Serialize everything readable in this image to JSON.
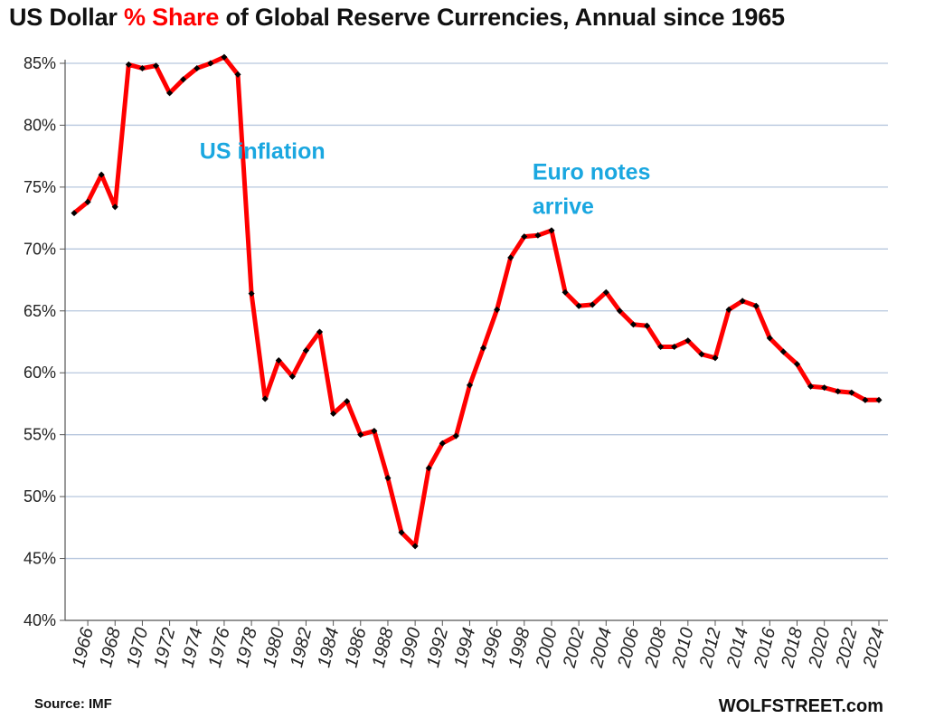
{
  "title": {
    "part1": "US Dollar ",
    "part2": "% Share",
    "part3": " of Global Reserve Currencies, Annual since 1965"
  },
  "footer": {
    "source": "Source: IMF",
    "brand": "WOLFSTREET.com"
  },
  "colors": {
    "line": "#ff0000",
    "marker": "#000000",
    "grid": "#b7c7de",
    "annotation": "#1aa7e0",
    "title_highlight": "#ff0000"
  },
  "chart_data": {
    "type": "line",
    "title": "US Dollar % Share of Global Reserve Currencies, Annual since 1965",
    "xlabel": "",
    "ylabel": "",
    "ylim": [
      40,
      85
    ],
    "xlim": [
      1965,
      2024
    ],
    "grid": true,
    "y_ticks": [
      {
        "value": 40,
        "label": "40%"
      },
      {
        "value": 45,
        "label": "45%"
      },
      {
        "value": 50,
        "label": "50%"
      },
      {
        "value": 55,
        "label": "55%"
      },
      {
        "value": 60,
        "label": "60%"
      },
      {
        "value": 65,
        "label": "65%"
      },
      {
        "value": 70,
        "label": "70%"
      },
      {
        "value": 75,
        "label": "75%"
      },
      {
        "value": 80,
        "label": "80%"
      },
      {
        "value": 85,
        "label": "85%"
      }
    ],
    "x_ticks": [
      "1966",
      "1968",
      "1970",
      "1972",
      "1974",
      "1976",
      "1978",
      "1980",
      "1982",
      "1984",
      "1986",
      "1988",
      "1990",
      "1992",
      "1994",
      "1996",
      "1998",
      "2000",
      "2002",
      "2004",
      "2006",
      "2008",
      "2010",
      "2012",
      "2014",
      "2016",
      "2018",
      "2020",
      "2022",
      "2024"
    ],
    "series": [
      {
        "years": [
          1965,
          1966,
          1967,
          1968,
          1969,
          1970,
          1971,
          1972,
          1973,
          1974,
          1975,
          1976,
          1977,
          1978,
          1979,
          1980,
          1981,
          1982,
          1983,
          1984,
          1985,
          1986,
          1987,
          1988,
          1989,
          1990,
          1991,
          1992,
          1993,
          1994,
          1995,
          1996,
          1997,
          1998,
          1999,
          2000,
          2001,
          2002,
          2003,
          2004,
          2005,
          2006,
          2007,
          2008,
          2009,
          2010,
          2011,
          2012,
          2013,
          2014,
          2015,
          2016,
          2017,
          2018,
          2019,
          2020,
          2021,
          2022,
          2023,
          2024
        ],
        "values": [
          72.9,
          73.8,
          76.0,
          73.4,
          84.9,
          84.6,
          84.8,
          82.6,
          83.7,
          84.6,
          85.0,
          85.5,
          84.1,
          66.4,
          57.9,
          61.0,
          59.7,
          61.8,
          63.3,
          56.7,
          57.7,
          55.0,
          55.3,
          51.5,
          47.1,
          46.0,
          52.3,
          54.3,
          54.9,
          59.0,
          62.0,
          65.1,
          69.3,
          71.0,
          71.1,
          71.5,
          66.5,
          65.4,
          65.5,
          66.5,
          65.0,
          63.9,
          63.8,
          62.1,
          62.1,
          62.6,
          61.5,
          61.2,
          65.1,
          65.8,
          65.4,
          62.8,
          61.7,
          60.7,
          58.9,
          58.8,
          58.5,
          58.4,
          57.8,
          57.8
        ]
      }
    ],
    "annotations": [
      {
        "lines": [
          "US inflation"
        ],
        "x": 1974.2,
        "y": 77.3
      },
      {
        "lines": [
          "Euro notes",
          "arrive"
        ],
        "x": 1998.6,
        "y": 75.6
      }
    ]
  }
}
